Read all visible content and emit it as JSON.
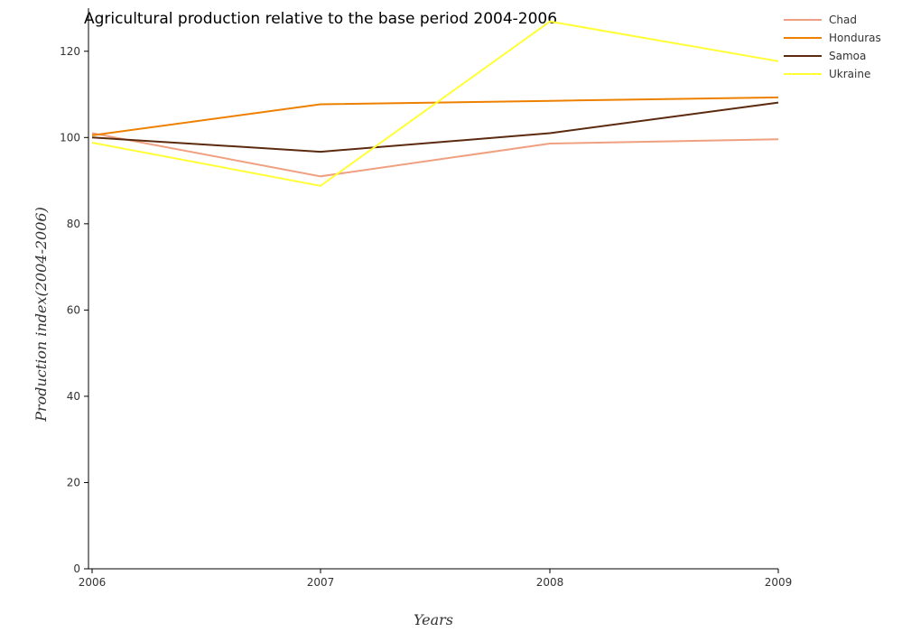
{
  "chart_data": {
    "type": "line",
    "title": "Agricultural production relative to the base period 2004-2006",
    "xlabel": "Years",
    "ylabel": "Production index(2004-2006)",
    "categories": [
      "2006",
      "2007",
      "2008",
      "2009"
    ],
    "ylim": [
      0,
      130
    ],
    "yticks": [
      0,
      20,
      40,
      60,
      80,
      100,
      120
    ],
    "grid": false,
    "legend_position": "top-right",
    "series": [
      {
        "name": "Chad",
        "color": "#f0a080",
        "values": [
          101.0,
          91.0,
          98.6,
          99.6
        ]
      },
      {
        "name": "Honduras",
        "color": "#ee8000",
        "values": [
          100.5,
          107.7,
          108.5,
          109.3
        ]
      },
      {
        "name": "Samoa",
        "color": "#5c2a0e",
        "values": [
          100.0,
          96.7,
          101.0,
          108.1
        ]
      },
      {
        "name": "Ukraine",
        "color": "#ffff33",
        "values": [
          98.8,
          88.8,
          126.9,
          117.7
        ]
      }
    ]
  }
}
